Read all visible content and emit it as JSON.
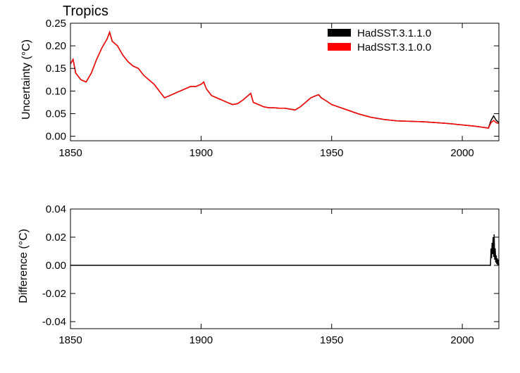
{
  "chart_data": [
    {
      "type": "line",
      "title": "Tropics",
      "xlabel": "",
      "ylabel": "Uncertainty (°C)",
      "xlim": [
        1850,
        2014
      ],
      "ylim": [
        -0.01,
        0.25
      ],
      "xticks": [
        1850,
        1900,
        1950,
        2000
      ],
      "yticks": [
        0.0,
        0.05,
        0.1,
        0.15,
        0.2,
        0.25
      ],
      "ytick_labels": [
        "0.00",
        "0.05",
        "0.10",
        "0.15",
        "0.20",
        "0.25"
      ],
      "legend": "top-right",
      "series": [
        {
          "name": "HadSST.3.1.1.0",
          "color": "#000000",
          "x": [
            1850,
            1851,
            1852,
            1854,
            1856,
            1858,
            1860,
            1862,
            1864,
            1865,
            1866,
            1868,
            1870,
            1872,
            1874,
            1876,
            1878,
            1880,
            1882,
            1884,
            1886,
            1888,
            1890,
            1892,
            1894,
            1896,
            1898,
            1900,
            1901,
            1902,
            1904,
            1906,
            1908,
            1910,
            1912,
            1914,
            1916,
            1918,
            1919,
            1920,
            1922,
            1924,
            1926,
            1928,
            1930,
            1932,
            1934,
            1936,
            1938,
            1940,
            1942,
            1944,
            1945,
            1946,
            1948,
            1950,
            1955,
            1960,
            1965,
            1970,
            1975,
            1980,
            1985,
            1990,
            1995,
            2000,
            2005,
            2010,
            2011,
            2012,
            2013,
            2014
          ],
          "y": [
            0.16,
            0.17,
            0.14,
            0.125,
            0.12,
            0.14,
            0.17,
            0.195,
            0.215,
            0.23,
            0.21,
            0.2,
            0.18,
            0.165,
            0.155,
            0.15,
            0.135,
            0.125,
            0.115,
            0.1,
            0.085,
            0.09,
            0.095,
            0.1,
            0.105,
            0.11,
            0.11,
            0.115,
            0.12,
            0.105,
            0.09,
            0.085,
            0.08,
            0.075,
            0.07,
            0.072,
            0.08,
            0.09,
            0.095,
            0.075,
            0.07,
            0.065,
            0.063,
            0.063,
            0.062,
            0.062,
            0.06,
            0.058,
            0.065,
            0.075,
            0.085,
            0.09,
            0.092,
            0.085,
            0.078,
            0.07,
            0.06,
            0.05,
            0.042,
            0.037,
            0.034,
            0.033,
            0.032,
            0.03,
            0.028,
            0.025,
            0.022,
            0.018,
            0.035,
            0.045,
            0.035,
            0.03
          ]
        },
        {
          "name": "HadSST.3.1.0.0",
          "color": "#ff0000",
          "x": [
            1850,
            1851,
            1852,
            1854,
            1856,
            1858,
            1860,
            1862,
            1864,
            1865,
            1866,
            1868,
            1870,
            1872,
            1874,
            1876,
            1878,
            1880,
            1882,
            1884,
            1886,
            1888,
            1890,
            1892,
            1894,
            1896,
            1898,
            1900,
            1901,
            1902,
            1904,
            1906,
            1908,
            1910,
            1912,
            1914,
            1916,
            1918,
            1919,
            1920,
            1922,
            1924,
            1926,
            1928,
            1930,
            1932,
            1934,
            1936,
            1938,
            1940,
            1942,
            1944,
            1945,
            1946,
            1948,
            1950,
            1955,
            1960,
            1965,
            1970,
            1975,
            1980,
            1985,
            1990,
            1995,
            2000,
            2005,
            2010,
            2011,
            2012,
            2013,
            2014
          ],
          "y": [
            0.16,
            0.17,
            0.14,
            0.125,
            0.12,
            0.14,
            0.17,
            0.195,
            0.215,
            0.23,
            0.21,
            0.2,
            0.18,
            0.165,
            0.155,
            0.15,
            0.135,
            0.125,
            0.115,
            0.1,
            0.085,
            0.09,
            0.095,
            0.1,
            0.105,
            0.11,
            0.11,
            0.115,
            0.12,
            0.105,
            0.09,
            0.085,
            0.08,
            0.075,
            0.07,
            0.072,
            0.08,
            0.09,
            0.095,
            0.075,
            0.07,
            0.065,
            0.063,
            0.063,
            0.062,
            0.062,
            0.06,
            0.058,
            0.065,
            0.075,
            0.085,
            0.09,
            0.092,
            0.085,
            0.078,
            0.07,
            0.06,
            0.05,
            0.042,
            0.037,
            0.034,
            0.033,
            0.032,
            0.03,
            0.028,
            0.025,
            0.022,
            0.018,
            0.03,
            0.035,
            0.03,
            0.028
          ]
        }
      ]
    },
    {
      "type": "line",
      "title": "",
      "xlabel": "",
      "ylabel": "Difference (°C)",
      "xlim": [
        1850,
        2014
      ],
      "ylim": [
        -0.045,
        0.04
      ],
      "xticks": [
        1850,
        1900,
        1950,
        2000
      ],
      "yticks": [
        -0.04,
        -0.02,
        0.0,
        0.02,
        0.04
      ],
      "ytick_labels": [
        "-0.04",
        "-0.02",
        "0.00",
        "0.02",
        "0.04"
      ],
      "series": [
        {
          "name": "",
          "color": "#000000",
          "x": [
            1850,
            2010.8,
            2011.0,
            2011.2,
            2011.4,
            2011.6,
            2011.8,
            2012.0,
            2012.2,
            2012.4,
            2012.6,
            2012.8,
            2013.0,
            2013.2,
            2013.4,
            2013.6,
            2013.8,
            2014
          ],
          "y": [
            0.0,
            0.0,
            0.012,
            0.005,
            0.016,
            0.008,
            0.02,
            0.006,
            0.022,
            0.004,
            0.012,
            0.002,
            0.007,
            0.001,
            0.005,
            0.0,
            0.004,
            0.0
          ]
        }
      ]
    }
  ]
}
